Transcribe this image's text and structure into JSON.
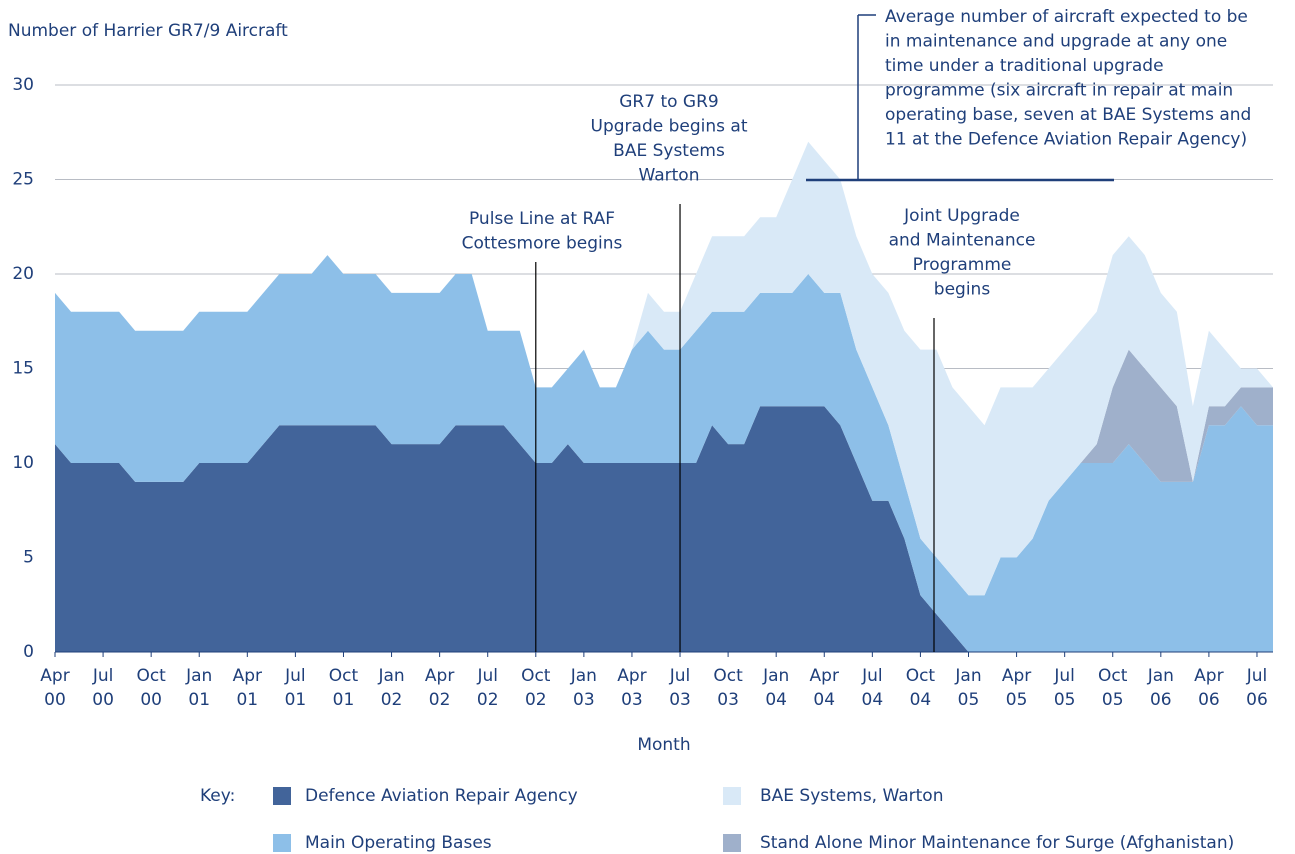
{
  "chart_data": {
    "type": "stacked_area",
    "y_label": "Number of Harrier GR7/9 Aircraft",
    "x_label": "Month",
    "legend_title": "Key:",
    "categories": [
      "Apr 00",
      null,
      null,
      "Jul 00",
      null,
      null,
      "Oct 00",
      null,
      null,
      "Jan 01",
      null,
      null,
      "Apr 01",
      null,
      null,
      "Jul 01",
      null,
      null,
      "Oct 01",
      null,
      null,
      "Jan 02",
      null,
      null,
      "Apr 02",
      null,
      null,
      "Jul 02",
      null,
      null,
      "Oct 02",
      null,
      null,
      "Jan 03",
      null,
      null,
      "Apr 03",
      null,
      null,
      "Jul 03",
      null,
      null,
      "Oct 03",
      null,
      null,
      "Jan 04",
      null,
      null,
      "Apr 04",
      null,
      null,
      "Jul 04",
      null,
      null,
      "Oct 04",
      null,
      null,
      "Jan 05",
      null,
      null,
      "Apr 05",
      null,
      null,
      "Jul 05",
      null,
      null,
      "Oct 05",
      null,
      null,
      "Jan 06",
      null,
      null,
      "Apr 06",
      null,
      null,
      "Jul 06",
      null
    ],
    "series": [
      {
        "name": "Defence Aviation Repair Agency",
        "color": "#42649a",
        "values": [
          11,
          10,
          10,
          10,
          10,
          9,
          9,
          9,
          9,
          10,
          10,
          10,
          10,
          11,
          12,
          12,
          12,
          12,
          12,
          12,
          12,
          11,
          11,
          11,
          11,
          12,
          12,
          12,
          12,
          11,
          10,
          10,
          11,
          10,
          10,
          10,
          10,
          10,
          10,
          10,
          10,
          12,
          11,
          11,
          13,
          13,
          13,
          13,
          13,
          12,
          10,
          8,
          8,
          6,
          3,
          2,
          1,
          0,
          0,
          0,
          0,
          0,
          0,
          0,
          0,
          0,
          0,
          0,
          0,
          0,
          0,
          0,
          0,
          0,
          0,
          0,
          0
        ]
      },
      {
        "name": "Main Operating Bases",
        "color": "#8dbfe8",
        "values": [
          8,
          8,
          8,
          8,
          8,
          8,
          8,
          8,
          8,
          8,
          8,
          8,
          8,
          8,
          8,
          8,
          8,
          9,
          8,
          8,
          8,
          8,
          8,
          8,
          8,
          8,
          8,
          5,
          5,
          6,
          4,
          4,
          4,
          6,
          4,
          4,
          6,
          7,
          6,
          6,
          7,
          6,
          7,
          7,
          6,
          6,
          6,
          7,
          6,
          7,
          6,
          6,
          4,
          3,
          3,
          3,
          3,
          3,
          3,
          5,
          5,
          6,
          8,
          9,
          10,
          10,
          10,
          11,
          10,
          9,
          9,
          9,
          12,
          12,
          13,
          12,
          12
        ]
      },
      {
        "name": "BAE Systems, Warton",
        "color": "#d9e9f7",
        "values": [
          0,
          0,
          0,
          0,
          0,
          0,
          0,
          0,
          0,
          0,
          0,
          0,
          0,
          0,
          0,
          0,
          0,
          0,
          0,
          0,
          0,
          0,
          0,
          0,
          0,
          0,
          0,
          0,
          0,
          0,
          0,
          0,
          0,
          0,
          0,
          0,
          0,
          2,
          2,
          2,
          3,
          4,
          4,
          4,
          4,
          4,
          6,
          7,
          7,
          6,
          6,
          6,
          7,
          8,
          10,
          11,
          10,
          10,
          9,
          9,
          9,
          8,
          7,
          7,
          7,
          7,
          7,
          6,
          6,
          5,
          5,
          4,
          4,
          3,
          1,
          1,
          0
        ]
      },
      {
        "name": "Stand Alone Minor Maintenance for Surge (Afghanistan)",
        "color": "#9fb0cb",
        "values": [
          0,
          0,
          0,
          0,
          0,
          0,
          0,
          0,
          0,
          0,
          0,
          0,
          0,
          0,
          0,
          0,
          0,
          0,
          0,
          0,
          0,
          0,
          0,
          0,
          0,
          0,
          0,
          0,
          0,
          0,
          0,
          0,
          0,
          0,
          0,
          0,
          0,
          0,
          0,
          0,
          0,
          0,
          0,
          0,
          0,
          0,
          0,
          0,
          0,
          0,
          0,
          0,
          0,
          0,
          0,
          0,
          0,
          0,
          0,
          0,
          0,
          0,
          0,
          0,
          0,
          1,
          4,
          5,
          5,
          5,
          4,
          0,
          1,
          1,
          1,
          2,
          2
        ]
      }
    ],
    "ylim": [
      0,
      30
    ],
    "yticks": [
      0,
      5,
      10,
      15,
      20,
      25,
      30
    ],
    "grid": true,
    "annotations": [
      {
        "lines": [
          "Pulse Line at RAF",
          "Cottesmore begins"
        ]
      },
      {
        "lines": [
          "GR7 to GR9",
          "Upgrade begins at",
          "BAE Systems",
          "Warton"
        ]
      },
      {
        "lines": [
          "Joint Upgrade",
          "and Maintenance",
          "Programme",
          "begins"
        ]
      },
      {
        "lines": [
          "Average number of aircraft expected to be",
          "in maintenance and upgrade at any one",
          "time under a traditional upgrade",
          "programme (six aircraft in repair at main",
          "operating base, seven at BAE Systems and",
          "11 at the Defence Aviation Repair Agency)"
        ]
      }
    ]
  }
}
